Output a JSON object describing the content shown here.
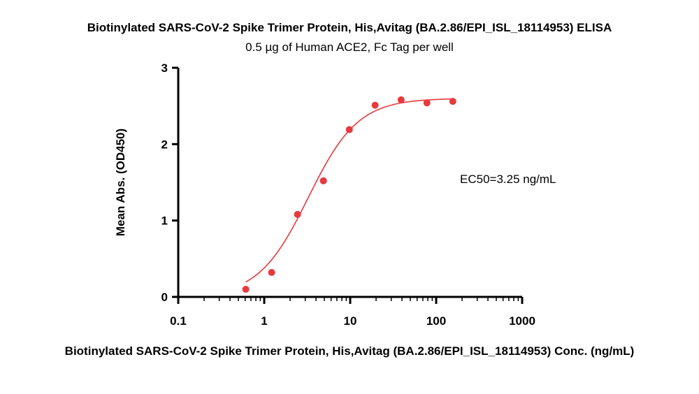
{
  "chart_data": {
    "type": "scatter",
    "title": "Biotinylated SARS-CoV-2 Spike Trimer Protein, His,Avitag (BA.2.86/EPI_ISL_18114953) ELISA",
    "subtitle": "0.5 µg of Human ACE2, Fc Tag per well",
    "xlabel": "Biotinylated SARS-CoV-2 Spike Trimer Protein, His,Avitag (BA.2.86/EPI_ISL_18114953) Conc. (ng/mL)",
    "ylabel": "Mean Abs. (OD450)",
    "x_scale": "log",
    "xlim": [
      0.1,
      1000
    ],
    "ylim": [
      0,
      3
    ],
    "x_ticks": [
      0.1,
      1,
      10,
      100,
      1000
    ],
    "x_tick_labels": [
      "0.1",
      "1",
      "10",
      "100",
      "1000"
    ],
    "y_ticks": [
      0,
      1,
      2,
      3
    ],
    "y_tick_labels": [
      "0",
      "1",
      "2",
      "3"
    ],
    "annotation": "EC50=3.25 ng/mL",
    "color": "#e8393f",
    "grid": false,
    "legend": "none",
    "points": [
      {
        "x": 0.61,
        "y": 0.1
      },
      {
        "x": 1.22,
        "y": 0.32
      },
      {
        "x": 2.44,
        "y": 1.08
      },
      {
        "x": 4.88,
        "y": 1.52
      },
      {
        "x": 9.77,
        "y": 2.19
      },
      {
        "x": 19.5,
        "y": 2.51
      },
      {
        "x": 39.1,
        "y": 2.58
      },
      {
        "x": 78.1,
        "y": 2.54
      },
      {
        "x": 156.3,
        "y": 2.56
      }
    ],
    "fit": {
      "model": "4PL",
      "bottom": 0.0,
      "top": 2.6,
      "ec50": 3.25,
      "hill": 1.5,
      "x_from": 0.61,
      "x_to": 156.3
    }
  }
}
